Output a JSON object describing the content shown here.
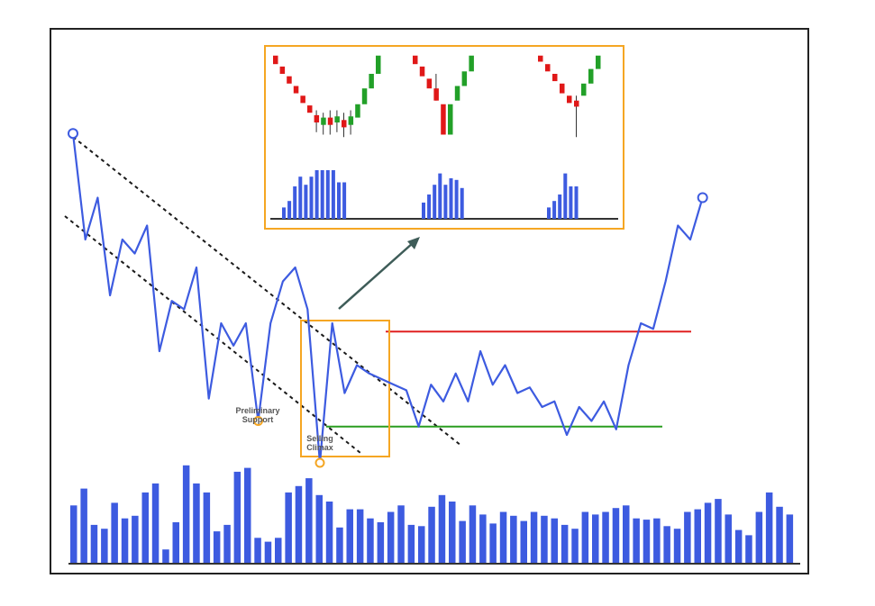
{
  "chart_data": {
    "type": "line",
    "title": "",
    "annotations": {
      "preliminary_support": [
        "Preliminary",
        "Support"
      ],
      "selling_climax": [
        "Selling",
        "Climax"
      ]
    },
    "price": [
      [
        0,
        98
      ],
      [
        1,
        60
      ],
      [
        2,
        75
      ],
      [
        3,
        40
      ],
      [
        4,
        60
      ],
      [
        5,
        55
      ],
      [
        6,
        65
      ],
      [
        7,
        20
      ],
      [
        8,
        38
      ],
      [
        9,
        35
      ],
      [
        10,
        50
      ],
      [
        11,
        3
      ],
      [
        12,
        30
      ],
      [
        13,
        22
      ],
      [
        14,
        30
      ],
      [
        15,
        -5
      ],
      [
        16,
        30
      ],
      [
        17,
        45
      ],
      [
        18,
        50
      ],
      [
        19,
        35
      ],
      [
        20,
        -20
      ],
      [
        21,
        30
      ],
      [
        22,
        5
      ],
      [
        23,
        15
      ],
      [
        24,
        12
      ],
      [
        25,
        10
      ],
      [
        26,
        8
      ],
      [
        27,
        6
      ],
      [
        28,
        -7
      ],
      [
        29,
        8
      ],
      [
        30,
        2
      ],
      [
        31,
        12
      ],
      [
        32,
        2
      ],
      [
        33,
        20
      ],
      [
        34,
        8
      ],
      [
        35,
        15
      ],
      [
        36,
        5
      ],
      [
        37,
        7
      ],
      [
        38,
        0
      ],
      [
        39,
        2
      ],
      [
        40,
        -10
      ],
      [
        41,
        0
      ],
      [
        42,
        -5
      ],
      [
        43,
        2
      ],
      [
        44,
        -8
      ],
      [
        45,
        15
      ],
      [
        46,
        30
      ],
      [
        47,
        28
      ],
      [
        48,
        45
      ],
      [
        49,
        65
      ],
      [
        50,
        60
      ],
      [
        51,
        75
      ]
    ],
    "resistance_level": 27,
    "support_level": -7,
    "volume": [
      45,
      58,
      30,
      27,
      47,
      35,
      37,
      55,
      62,
      11,
      32,
      76,
      62,
      55,
      25,
      30,
      71,
      74,
      20,
      17,
      20,
      55,
      60,
      66,
      53,
      48,
      28,
      42,
      42,
      35,
      32,
      40,
      45,
      30,
      29,
      44,
      53,
      48,
      33,
      45,
      38,
      31,
      40,
      37,
      33,
      40,
      37,
      35,
      30,
      27,
      40,
      38,
      40,
      43,
      45,
      35,
      34,
      35,
      29,
      27,
      40,
      42,
      47,
      50,
      38,
      26,
      22,
      40,
      55,
      44,
      38
    ],
    "inset_patterns": [
      {
        "candles": [
          {
            "o": 95,
            "c": 88
          },
          {
            "o": 86,
            "c": 80
          },
          {
            "o": 78,
            "c": 72
          },
          {
            "o": 70,
            "c": 64
          },
          {
            "o": 62,
            "c": 56
          },
          {
            "o": 54,
            "c": 48
          },
          {
            "o": 46,
            "c": 40,
            "h": 50,
            "l": 32
          },
          {
            "o": 38,
            "c": 44,
            "h": 48,
            "l": 30
          },
          {
            "o": 44,
            "c": 38,
            "h": 50,
            "l": 30
          },
          {
            "o": 40,
            "c": 45,
            "h": 50,
            "l": 32
          },
          {
            "o": 42,
            "c": 36,
            "h": 48,
            "l": 28
          },
          {
            "o": 38,
            "c": 45,
            "h": 50,
            "l": 30
          },
          {
            "o": 44,
            "c": 55
          },
          {
            "o": 55,
            "c": 68
          },
          {
            "o": 68,
            "c": 80
          },
          {
            "o": 80,
            "c": 95
          }
        ],
        "volume": [
          14,
          22,
          40,
          52,
          42,
          52,
          60,
          60,
          60,
          60,
          45,
          45
        ]
      },
      {
        "candles": [
          {
            "o": 95,
            "c": 88
          },
          {
            "o": 86,
            "c": 78
          },
          {
            "o": 76,
            "c": 68
          },
          {
            "o": 68,
            "c": 58,
            "h": 80
          },
          {
            "o": 55,
            "c": 30
          },
          {
            "o": 30,
            "c": 55
          },
          {
            "o": 58,
            "c": 70
          },
          {
            "o": 70,
            "c": 82
          },
          {
            "o": 82,
            "c": 95
          }
        ],
        "volume": [
          20,
          30,
          42,
          56,
          42,
          50,
          48,
          38
        ]
      },
      {
        "candles": [
          {
            "o": 95,
            "c": 90
          },
          {
            "o": 88,
            "c": 82
          },
          {
            "o": 80,
            "c": 74
          },
          {
            "o": 72,
            "c": 64
          },
          {
            "o": 62,
            "c": 56
          },
          {
            "o": 58,
            "c": 53,
            "h": 62,
            "l": 28
          },
          {
            "o": 62,
            "c": 72
          },
          {
            "o": 72,
            "c": 84
          },
          {
            "o": 84,
            "c": 95
          }
        ],
        "volume": [
          14,
          22,
          30,
          56,
          40,
          40
        ]
      }
    ],
    "colors": {
      "price": "#3d5be0",
      "volume": "#3d5be0",
      "channel": "#1a1a1a",
      "resistance": "#e02020",
      "support": "#2a9d20",
      "highlight_box": "#f5a623",
      "arrow": "#3e5c58",
      "bull_candle": "#22a028",
      "bear_candle": "#e01818",
      "frame": "#222222",
      "axis": "#333333"
    }
  }
}
